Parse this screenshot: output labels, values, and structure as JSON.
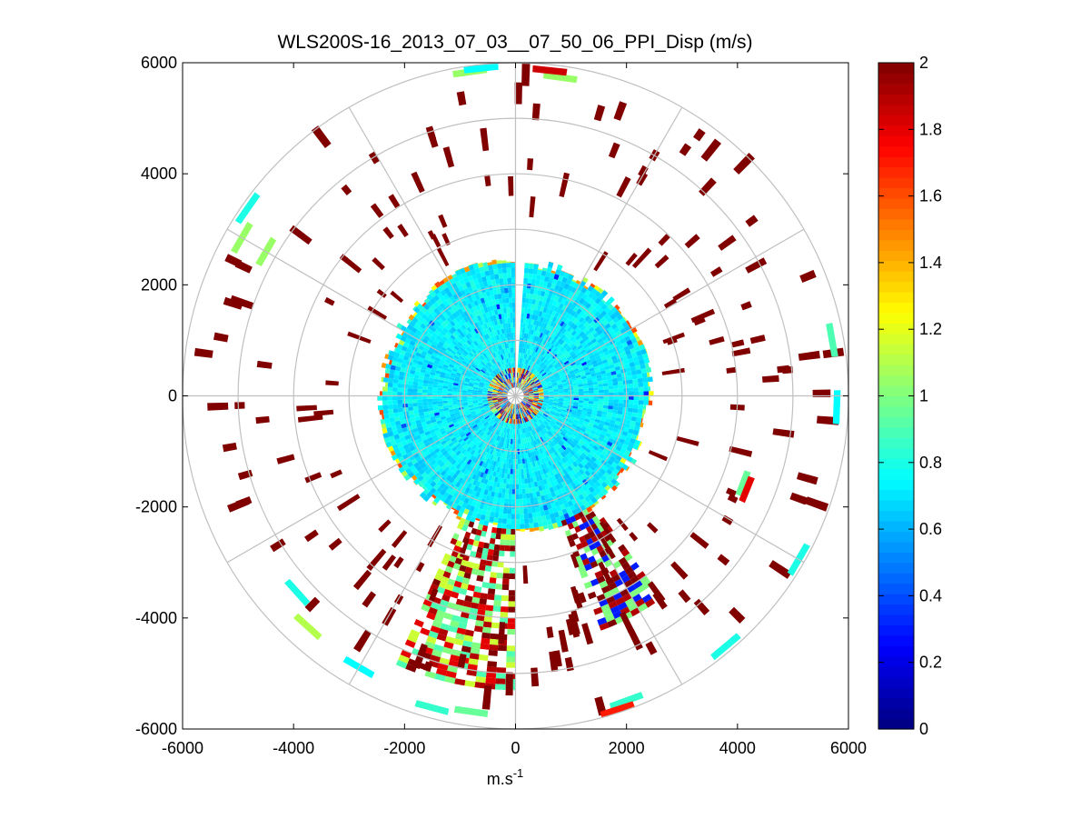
{
  "chart_data": {
    "type": "polar-ppi",
    "title": "WLS200S-16_2013_07_03__07_50_06_PPI_Disp (m/s)",
    "xlabel": "m.s",
    "xlabel_superscript": "-1",
    "ylabel": "",
    "xlim": [
      -6000,
      6000
    ],
    "ylim": [
      -6000,
      6000
    ],
    "x_ticks": [
      -6000,
      -4000,
      -2000,
      0,
      2000,
      4000,
      6000
    ],
    "y_ticks": [
      -6000,
      -4000,
      -2000,
      0,
      2000,
      4000,
      6000
    ],
    "polar_grid": {
      "range_rings_m": [
        1000,
        2000,
        3000,
        4000,
        5000,
        6000
      ],
      "spoke_step_deg": 30
    },
    "colorbar": {
      "colormap": "jet",
      "min": 0,
      "max": 2,
      "tick_labels": [
        "0",
        "0.2",
        "0.4",
        "0.6",
        "0.8",
        "1",
        "1.2",
        "1.4",
        "1.6",
        "1.8",
        "2"
      ],
      "tick_values": [
        0,
        0.2,
        0.4,
        0.6,
        0.8,
        1.0,
        1.2,
        1.4,
        1.6,
        1.8,
        2.0
      ]
    },
    "core_region": {
      "range_min_m": 150,
      "range_max_m": 2500,
      "dominant_value": 0.72,
      "gap_bearing_deg": [
        0,
        4
      ],
      "edge_values": [
        1.1,
        1.25,
        1.45,
        0.85,
        1.6
      ],
      "centre_noise_range_m": [
        0,
        500
      ]
    },
    "sectors": [
      {
        "name": "south-plume",
        "bearing_deg": [
          180,
          204
        ],
        "range_m": [
          2400,
          5300
        ],
        "values": [
          1.8,
          1.9,
          2.0,
          1.0,
          1.15,
          0.9
        ]
      },
      {
        "name": "south-east-plume",
        "bearing_deg": [
          144,
          160
        ],
        "range_m": [
          2400,
          4500
        ],
        "values": [
          2.0,
          1.9,
          1.0,
          0.3
        ]
      }
    ],
    "scatter_returns": [
      {
        "bearing_deg": 8,
        "range_m": 5800,
        "value": 1.05
      },
      {
        "bearing_deg": 6,
        "range_m": 5900,
        "value": 1.85
      },
      {
        "bearing_deg": 352,
        "range_m": 5900,
        "value": 1.05
      },
      {
        "bearing_deg": 354,
        "range_m": 5940,
        "value": 0.75
      },
      {
        "bearing_deg": 92,
        "range_m": 5800,
        "value": 0.75
      },
      {
        "bearing_deg": 80,
        "range_m": 5800,
        "value": 0.9
      },
      {
        "bearing_deg": 120,
        "range_m": 5900,
        "value": 0.8
      },
      {
        "bearing_deg": 140,
        "range_m": 5900,
        "value": 0.8
      },
      {
        "bearing_deg": 160,
        "range_m": 5850,
        "value": 0.85
      },
      {
        "bearing_deg": 162,
        "range_m": 5950,
        "value": 1.7
      },
      {
        "bearing_deg": 188,
        "range_m": 5750,
        "value": 0.95
      },
      {
        "bearing_deg": 195,
        "range_m": 5820,
        "value": 0.85
      },
      {
        "bearing_deg": 210,
        "range_m": 5650,
        "value": 0.75
      },
      {
        "bearing_deg": 222,
        "range_m": 5600,
        "value": 1.1
      },
      {
        "bearing_deg": 228,
        "range_m": 5300,
        "value": 0.8
      },
      {
        "bearing_deg": 300,
        "range_m": 5700,
        "value": 1.05
      },
      {
        "bearing_deg": 305,
        "range_m": 5900,
        "value": 0.8
      },
      {
        "bearing_deg": 300,
        "range_m": 5200,
        "value": 1.05
      },
      {
        "bearing_deg": 111,
        "range_m": 4400,
        "value": 0.95
      },
      {
        "bearing_deg": 112,
        "range_m": 4500,
        "value": 1.8
      }
    ]
  }
}
